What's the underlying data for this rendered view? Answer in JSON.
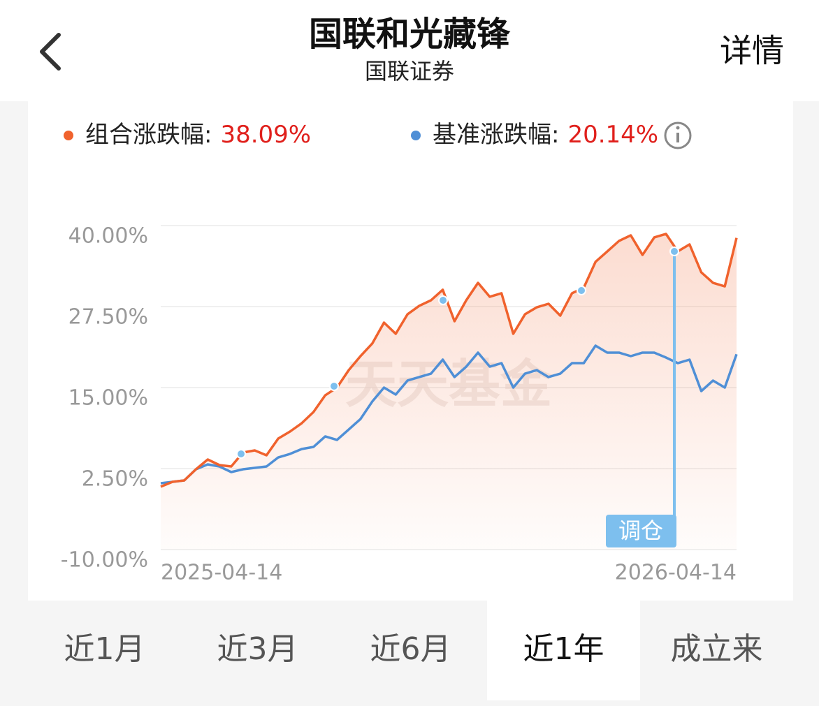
{
  "header": {
    "title": "国联和光藏锋",
    "subtitle": "国联证券",
    "action": "详情"
  },
  "chart_data": {
    "type": "line",
    "categories": [
      "2025-04-14",
      null,
      null,
      null,
      null,
      null,
      null,
      null,
      null,
      null,
      null,
      null,
      null,
      null,
      null,
      null,
      null,
      null,
      null,
      null,
      null,
      null,
      null,
      null,
      null,
      null,
      null,
      null,
      null,
      null,
      null,
      null,
      null,
      null,
      null,
      null,
      null,
      null,
      null,
      null,
      null,
      null,
      null,
      null,
      null,
      null,
      null,
      null,
      null,
      "2026-04-14"
    ],
    "series": [
      {
        "name": "组合涨跌幅:",
        "color": "#f0622d",
        "value_label": "38.09%",
        "values": [
          -0.3,
          0.45,
          0.67,
          2.39,
          3.9,
          3.04,
          2.82,
          4.98,
          5.3,
          4.55,
          7.13,
          8.21,
          9.5,
          11.23,
          13.81,
          15.0,
          17.69,
          19.85,
          21.79,
          25.02,
          23.3,
          26.31,
          27.61,
          28.47,
          30.09,
          25.24,
          28.47,
          31.16,
          29.01,
          29.55,
          23.3,
          26.31,
          27.39,
          27.93,
          26.1,
          29.55,
          30.41,
          34.4,
          36.01,
          37.63,
          38.49,
          35.47,
          38.17,
          38.71,
          36.01,
          37.09,
          32.78,
          31.16,
          30.62,
          38.09
        ]
      },
      {
        "name": "基准涨跌幅:",
        "color": "#4f8fd6",
        "value_label": "20.14%",
        "values": [
          0.24,
          0.45,
          0.67,
          2.39,
          3.15,
          2.82,
          1.96,
          2.39,
          2.61,
          2.82,
          4.22,
          4.76,
          5.52,
          5.84,
          7.46,
          6.92,
          8.53,
          10.15,
          12.84,
          15.0,
          13.92,
          16.08,
          16.62,
          17.15,
          19.31,
          16.62,
          18.23,
          20.39,
          18.23,
          18.77,
          15.0,
          17.15,
          17.69,
          16.62,
          17.15,
          18.77,
          18.77,
          21.47,
          20.39,
          20.39,
          19.85,
          20.39,
          20.39,
          19.63,
          18.77,
          19.31,
          14.46,
          16.08,
          15.0,
          20.14
        ]
      }
    ],
    "ylim": [
      -10,
      40
    ],
    "yticks": [
      {
        "value": -10,
        "label": "-10.00%"
      },
      {
        "value": 2.5,
        "label": "2.50%"
      },
      {
        "value": 15,
        "label": "15.00%"
      },
      {
        "value": 27.5,
        "label": "27.50%"
      },
      {
        "value": 40,
        "label": "40.00%"
      }
    ],
    "grid": true,
    "area_fill": "#f0622d",
    "watermark": "天天基金",
    "annotation": "调仓"
  },
  "tabs": [
    "近1月",
    "近3月",
    "近6月",
    "近1年",
    "成立来"
  ],
  "selected_tab": 3
}
